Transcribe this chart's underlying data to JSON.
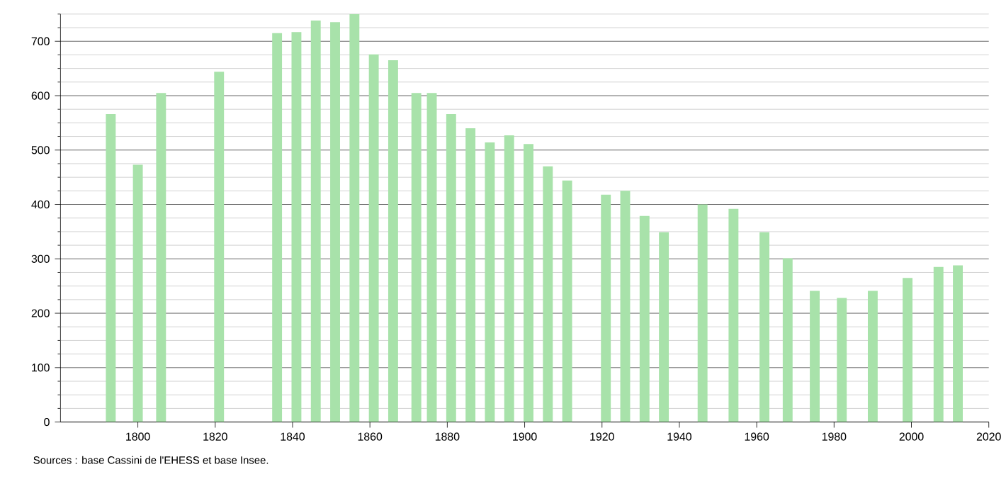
{
  "chart_data": {
    "type": "bar",
    "color": "#a8e2aa",
    "x": [
      1793,
      1800,
      1806,
      1821,
      1836,
      1841,
      1846,
      1851,
      1856,
      1861,
      1866,
      1872,
      1876,
      1881,
      1886,
      1891,
      1896,
      1901,
      1906,
      1911,
      1921,
      1926,
      1931,
      1936,
      1946,
      1954,
      1962,
      1968,
      1975,
      1982,
      1990,
      1999,
      2007,
      2012
    ],
    "values": [
      566,
      473,
      605,
      644,
      715,
      717,
      738,
      735,
      750,
      676,
      665,
      605,
      605,
      566,
      540,
      514,
      527,
      511,
      470,
      444,
      418,
      425,
      379,
      349,
      400,
      392,
      349,
      301,
      241,
      228,
      241,
      265,
      285,
      288
    ],
    "xlim": [
      1780,
      2020
    ],
    "xticks": [
      1800,
      1820,
      1840,
      1860,
      1880,
      1900,
      1920,
      1940,
      1960,
      1980,
      2000,
      2020
    ],
    "ylim": [
      0,
      750
    ],
    "yticks": [
      0,
      {
        "value": 25,
        "label": null
      },
      {
        "value": 50,
        "label": null
      },
      {
        "value": 75,
        "label": null
      },
      100,
      {
        "value": 125,
        "label": null
      },
      {
        "value": 150,
        "label": null
      },
      {
        "value": 175,
        "label": null
      },
      200,
      {
        "value": 225,
        "label": null
      },
      {
        "value": 250,
        "label": null
      },
      {
        "value": 275,
        "label": null
      },
      300,
      {
        "value": 325,
        "label": null
      },
      {
        "value": 350,
        "label": null
      },
      {
        "value": 375,
        "label": null
      },
      400,
      {
        "value": 425,
        "label": null
      },
      {
        "value": 450,
        "label": null
      },
      {
        "value": 475,
        "label": null
      },
      500,
      {
        "value": 525,
        "label": null
      },
      {
        "value": 550,
        "label": null
      },
      {
        "value": 575,
        "label": null
      },
      600,
      {
        "value": 625,
        "label": null
      },
      {
        "value": 650,
        "label": null
      },
      {
        "value": 675,
        "label": null
      },
      700,
      {
        "value": 725,
        "label": null
      },
      {
        "value": 750,
        "label": null
      }
    ],
    "grid": "y",
    "annotations": [
      "Sources : base Cassini de l'EHESS et base Insee."
    ]
  }
}
